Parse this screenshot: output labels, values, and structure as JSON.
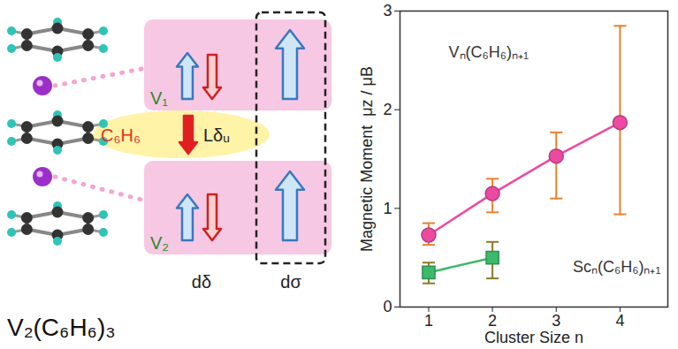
{
  "chart_data": {
    "type": "line",
    "xlabel": "Cluster Size n",
    "ylabel": "Magnetic Moment  μz / μB",
    "xlim": [
      0.55,
      4.75
    ],
    "xticks": [
      1,
      2,
      3,
      4
    ],
    "ylim": [
      0,
      3
    ],
    "yticks": [
      0,
      1,
      2,
      3
    ],
    "grid": false,
    "series": [
      {
        "name": "Vₙ(C₆H₆)ₙ₊₁",
        "color": "#ec4aa0",
        "marker": "circle",
        "x": [
          1,
          2,
          3,
          4
        ],
        "values": [
          0.73,
          1.15,
          1.53,
          1.87
        ],
        "error_low": [
          0.63,
          0.96,
          1.1,
          0.94
        ],
        "error_high": [
          0.85,
          1.3,
          1.77,
          2.85
        ]
      },
      {
        "name": "Scₙ(C₆H₆)ₙ₊₁",
        "color": "#3cb96a",
        "marker": "square",
        "x": [
          1,
          2
        ],
        "values": [
          0.35,
          0.5
        ],
        "error_low": [
          0.24,
          0.29
        ],
        "error_high": [
          0.45,
          0.66
        ]
      }
    ]
  },
  "diagram": {
    "title": "V₂(C₆H₆)₃",
    "metals": [
      "V₁",
      "V₂"
    ],
    "ligand": "C₆H₆",
    "ligand_orbital": "Lδᵤ",
    "orbitals": [
      "dδ",
      "dσ"
    ]
  }
}
